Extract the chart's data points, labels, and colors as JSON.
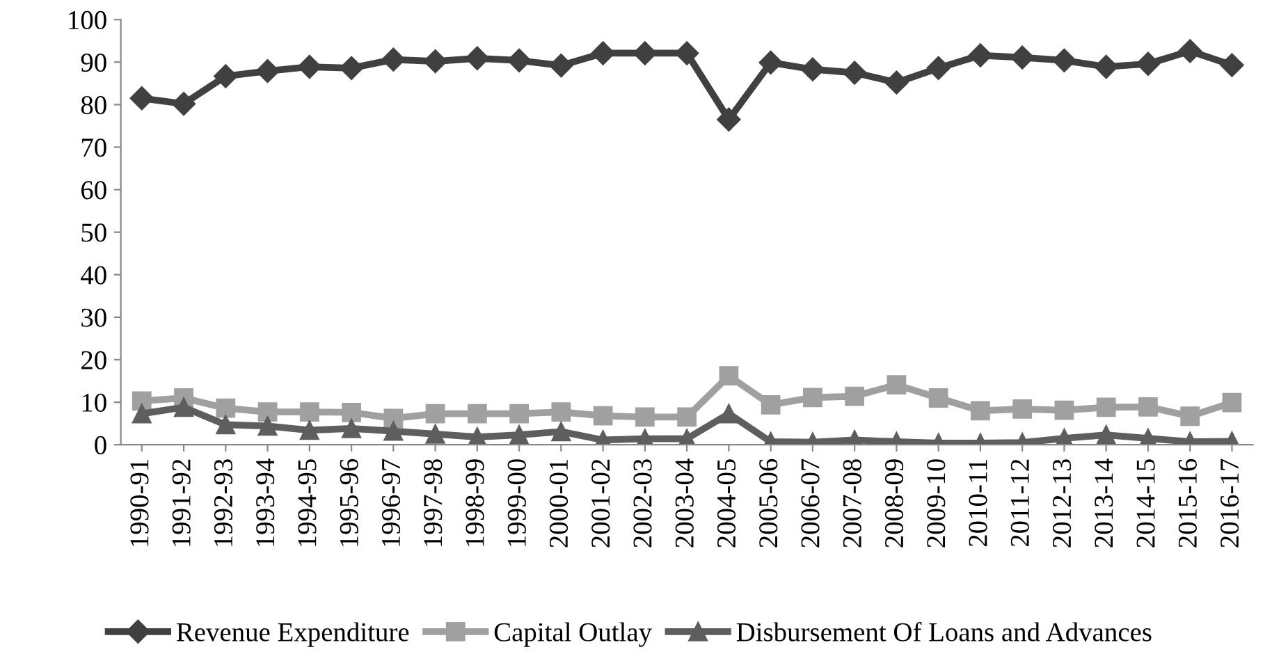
{
  "chart_data": {
    "type": "line",
    "categories": [
      "1990-91",
      "1991-92",
      "1992-93",
      "1993-94",
      "1994-95",
      "1995-96",
      "1996-97",
      "1997-98",
      "1998-99",
      "1999-00",
      "2000-01",
      "2001-02",
      "2002-03",
      "2003-04",
      "2004-05",
      "2005-06",
      "2006-07",
      "2007-08",
      "2008-09",
      "2009-10",
      "2010-11",
      "2011-12",
      "2012-13",
      "2013-14",
      "2014-15",
      "2015-16",
      "2016-17"
    ],
    "series": [
      {
        "name": "Revenue Expenditure",
        "color": "#404040",
        "marker": "diamond",
        "values": [
          81.5,
          80.2,
          86.7,
          87.9,
          88.9,
          88.6,
          90.6,
          90.2,
          90.9,
          90.4,
          89.2,
          92.1,
          92.1,
          92.1,
          76.5,
          89.9,
          88.3,
          87.5,
          85.2,
          88.6,
          91.6,
          91.1,
          90.4,
          88.9,
          89.6,
          92.6,
          89.3
        ]
      },
      {
        "name": "Capital Outlay",
        "color": "#a0a0a0",
        "marker": "square",
        "values": [
          10.3,
          11.0,
          8.6,
          7.7,
          7.7,
          7.6,
          6.2,
          7.3,
          7.3,
          7.3,
          7.7,
          6.8,
          6.5,
          6.5,
          16.2,
          9.4,
          11.1,
          11.4,
          14.1,
          11.0,
          8.0,
          8.4,
          8.1,
          8.8,
          8.9,
          6.7,
          9.9
        ]
      },
      {
        "name": "Disbursement Of Loans and Advances",
        "color": "#5e5e5e",
        "marker": "triangle",
        "values": [
          7.3,
          8.8,
          4.7,
          4.4,
          3.4,
          3.8,
          3.2,
          2.5,
          1.8,
          2.3,
          3.1,
          1.1,
          1.4,
          1.4,
          7.3,
          0.7,
          0.6,
          1.1,
          0.7,
          0.4,
          0.4,
          0.5,
          1.5,
          2.3,
          1.5,
          0.7,
          0.8
        ]
      }
    ],
    "ylim": [
      0,
      100
    ],
    "yticks": [
      0,
      10,
      20,
      30,
      40,
      50,
      60,
      70,
      80,
      90,
      100
    ],
    "grid": false,
    "legend": "bottom",
    "line_style": "solid"
  }
}
